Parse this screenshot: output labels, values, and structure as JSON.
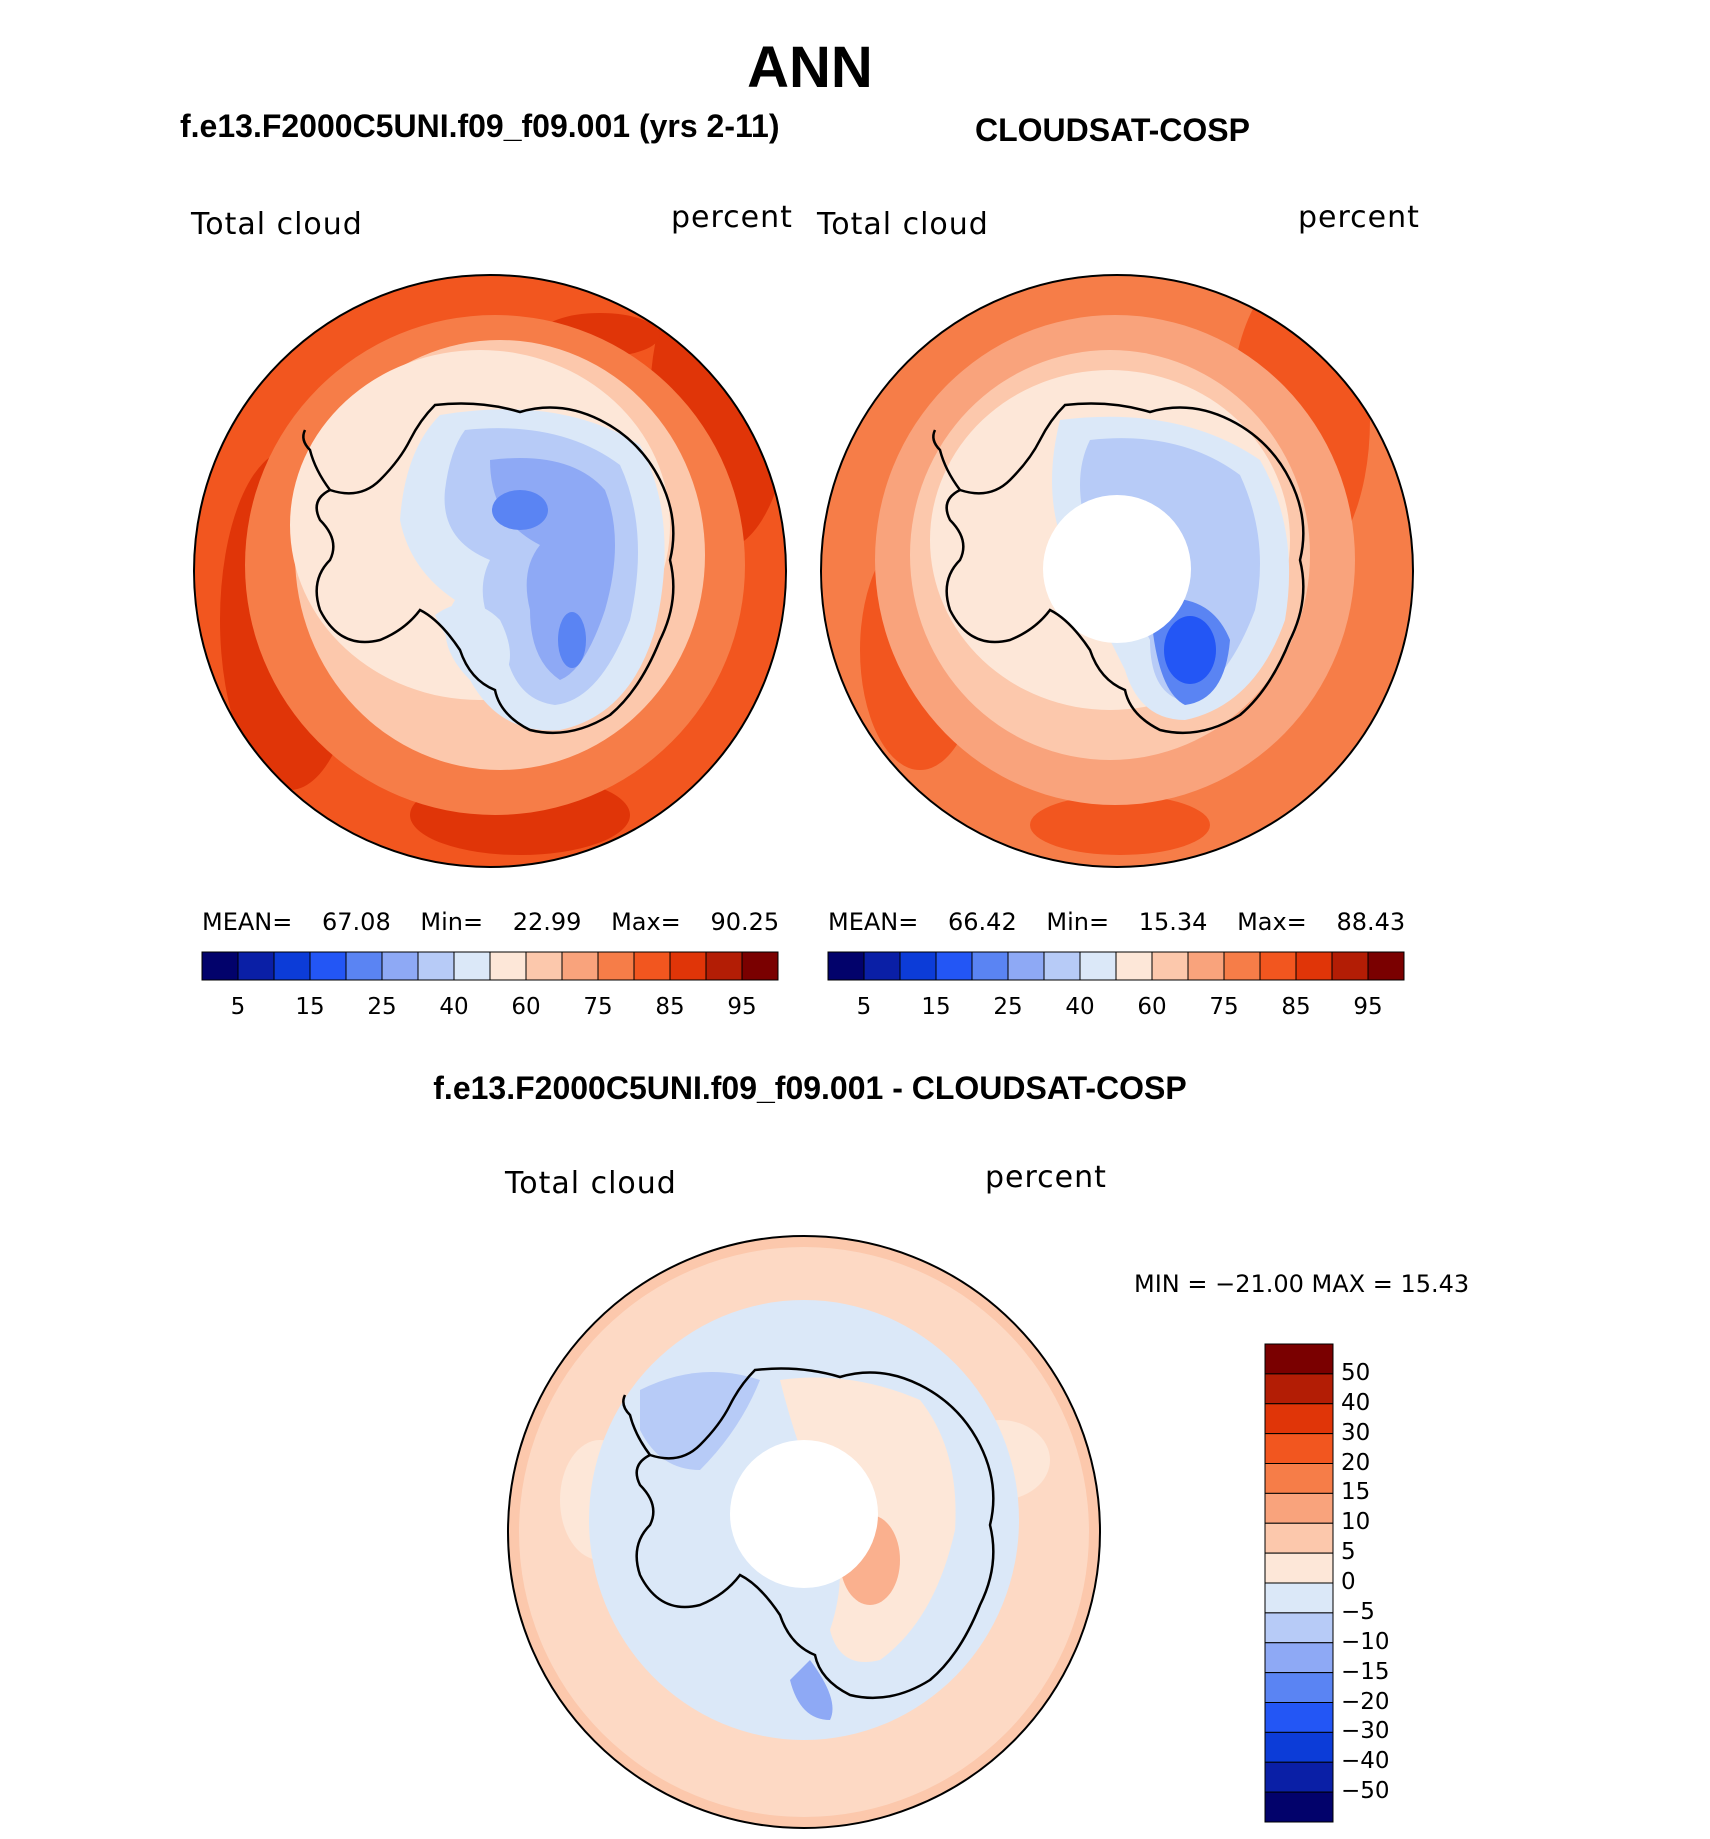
{
  "title": "ANN",
  "panels": [
    {
      "id": "model",
      "subtitle": "f.e13.F2000C5UNI.f09_f09.001 (yrs 2-11)",
      "variable": "Total cloud",
      "units": "percent",
      "stats": {
        "mean_label": "MEAN=",
        "mean": "67.08",
        "min_label": "Min=",
        "min": "22.99",
        "max_label": "Max=",
        "max": "90.25"
      },
      "colorbar_ticks": [
        "5",
        "15",
        "25",
        "40",
        "60",
        "75",
        "85",
        "95"
      ]
    },
    {
      "id": "obs",
      "subtitle": "CLOUDSAT-COSP",
      "variable": "Total cloud",
      "units": "percent",
      "stats": {
        "mean_label": "MEAN=",
        "mean": "66.42",
        "min_label": "Min=",
        "min": "15.34",
        "max_label": "Max=",
        "max": "88.43"
      },
      "colorbar_ticks": [
        "5",
        "15",
        "25",
        "40",
        "60",
        "75",
        "85",
        "95"
      ]
    }
  ],
  "difference": {
    "title": "f.e13.F2000C5UNI.f09_f09.001 - CLOUDSAT-COSP",
    "variable": "Total cloud",
    "units": "percent",
    "min_max_text": "MIN = −21.00 MAX =   15.43",
    "colorbar_labels": [
      "50",
      "40",
      "30",
      "20",
      "15",
      "10",
      "5",
      "0",
      "−5",
      "−10",
      "−15",
      "−20",
      "−30",
      "−40",
      "−50"
    ]
  },
  "colors": {
    "seq_scale": [
      "#02026b",
      "#0a1fa6",
      "#0c3cd8",
      "#2356f5",
      "#5a84f3",
      "#8ea9f5",
      "#b7cbf7",
      "#dbe8f8",
      "#fde7d8",
      "#fcc8ac",
      "#f9a37c",
      "#f67d48",
      "#f2561f",
      "#e03508",
      "#b31d05",
      "#7a0000"
    ],
    "diff_scale": [
      "#7a0000",
      "#b31d05",
      "#e03508",
      "#f2561f",
      "#f67d48",
      "#f9a37c",
      "#fcc8ac",
      "#fde7d8",
      "#dbe8f8",
      "#b7cbf7",
      "#8ea9f5",
      "#5a84f3",
      "#2356f5",
      "#0c3cd8",
      "#0a1fa6",
      "#02026b"
    ]
  }
}
